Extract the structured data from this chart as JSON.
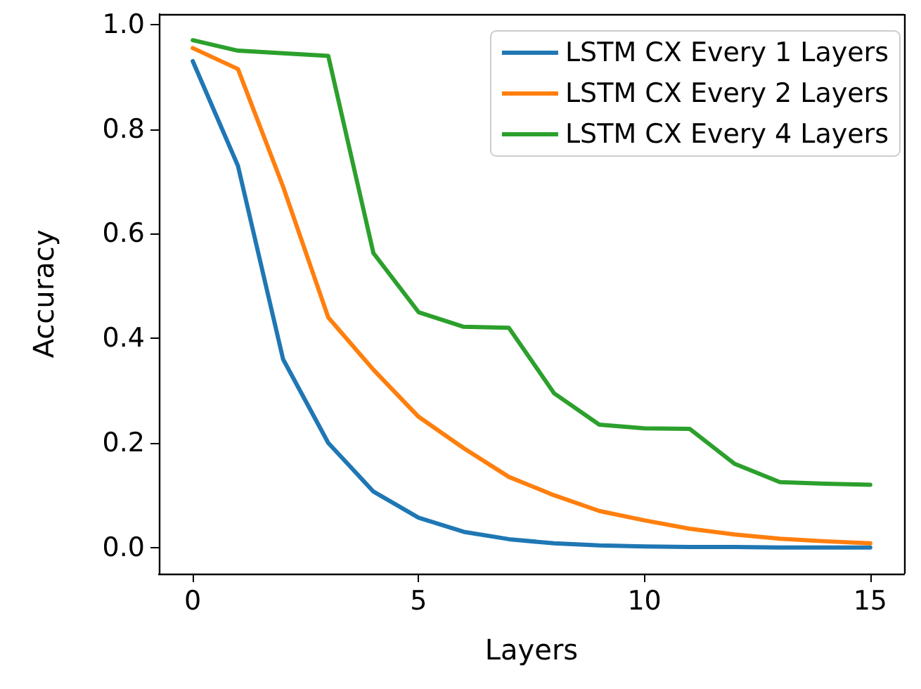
{
  "chart_data": {
    "type": "line",
    "xlabel": "Layers",
    "ylabel": "Accuracy",
    "x": [
      0,
      1,
      2,
      3,
      4,
      5,
      6,
      7,
      8,
      9,
      10,
      11,
      12,
      13,
      14,
      15
    ],
    "series": [
      {
        "name": "LSTM CX Every 1 Layers",
        "color": "#1f77b4",
        "values": [
          0.93,
          0.73,
          0.36,
          0.2,
          0.107,
          0.057,
          0.03,
          0.016,
          0.008,
          0.004,
          0.002,
          0.001,
          0.001,
          0,
          0,
          0
        ]
      },
      {
        "name": "LSTM CX Every 2 Layers",
        "color": "#ff7f0e",
        "values": [
          0.955,
          0.915,
          0.69,
          0.44,
          0.34,
          0.25,
          0.19,
          0.135,
          0.1,
          0.07,
          0.052,
          0.036,
          0.025,
          0.017,
          0.012,
          0.008
        ]
      },
      {
        "name": "LSTM CX Every 4 Layers",
        "color": "#2ca02c",
        "values": [
          0.97,
          0.95,
          0.945,
          0.94,
          0.563,
          0.45,
          0.422,
          0.42,
          0.295,
          0.235,
          0.228,
          0.227,
          0.16,
          0.125,
          0.122,
          0.12
        ]
      }
    ],
    "xlim": [
      -0.75,
      15.75
    ],
    "xticks": [
      0,
      5,
      10,
      15
    ],
    "ylim": [
      -0.05,
      1.02
    ],
    "yticks": [
      {
        "value": 0,
        "label": "0.0"
      },
      {
        "value": 0.2,
        "label": "0.2"
      },
      {
        "value": 0.4,
        "label": "0.4"
      },
      {
        "value": 0.6,
        "label": "0.6"
      },
      {
        "value": 0.8,
        "label": "0.8"
      },
      {
        "value": 1,
        "label": "1.0"
      }
    ],
    "legend": "top right",
    "grid": false,
    "marker": "none",
    "line_style": "solid"
  }
}
